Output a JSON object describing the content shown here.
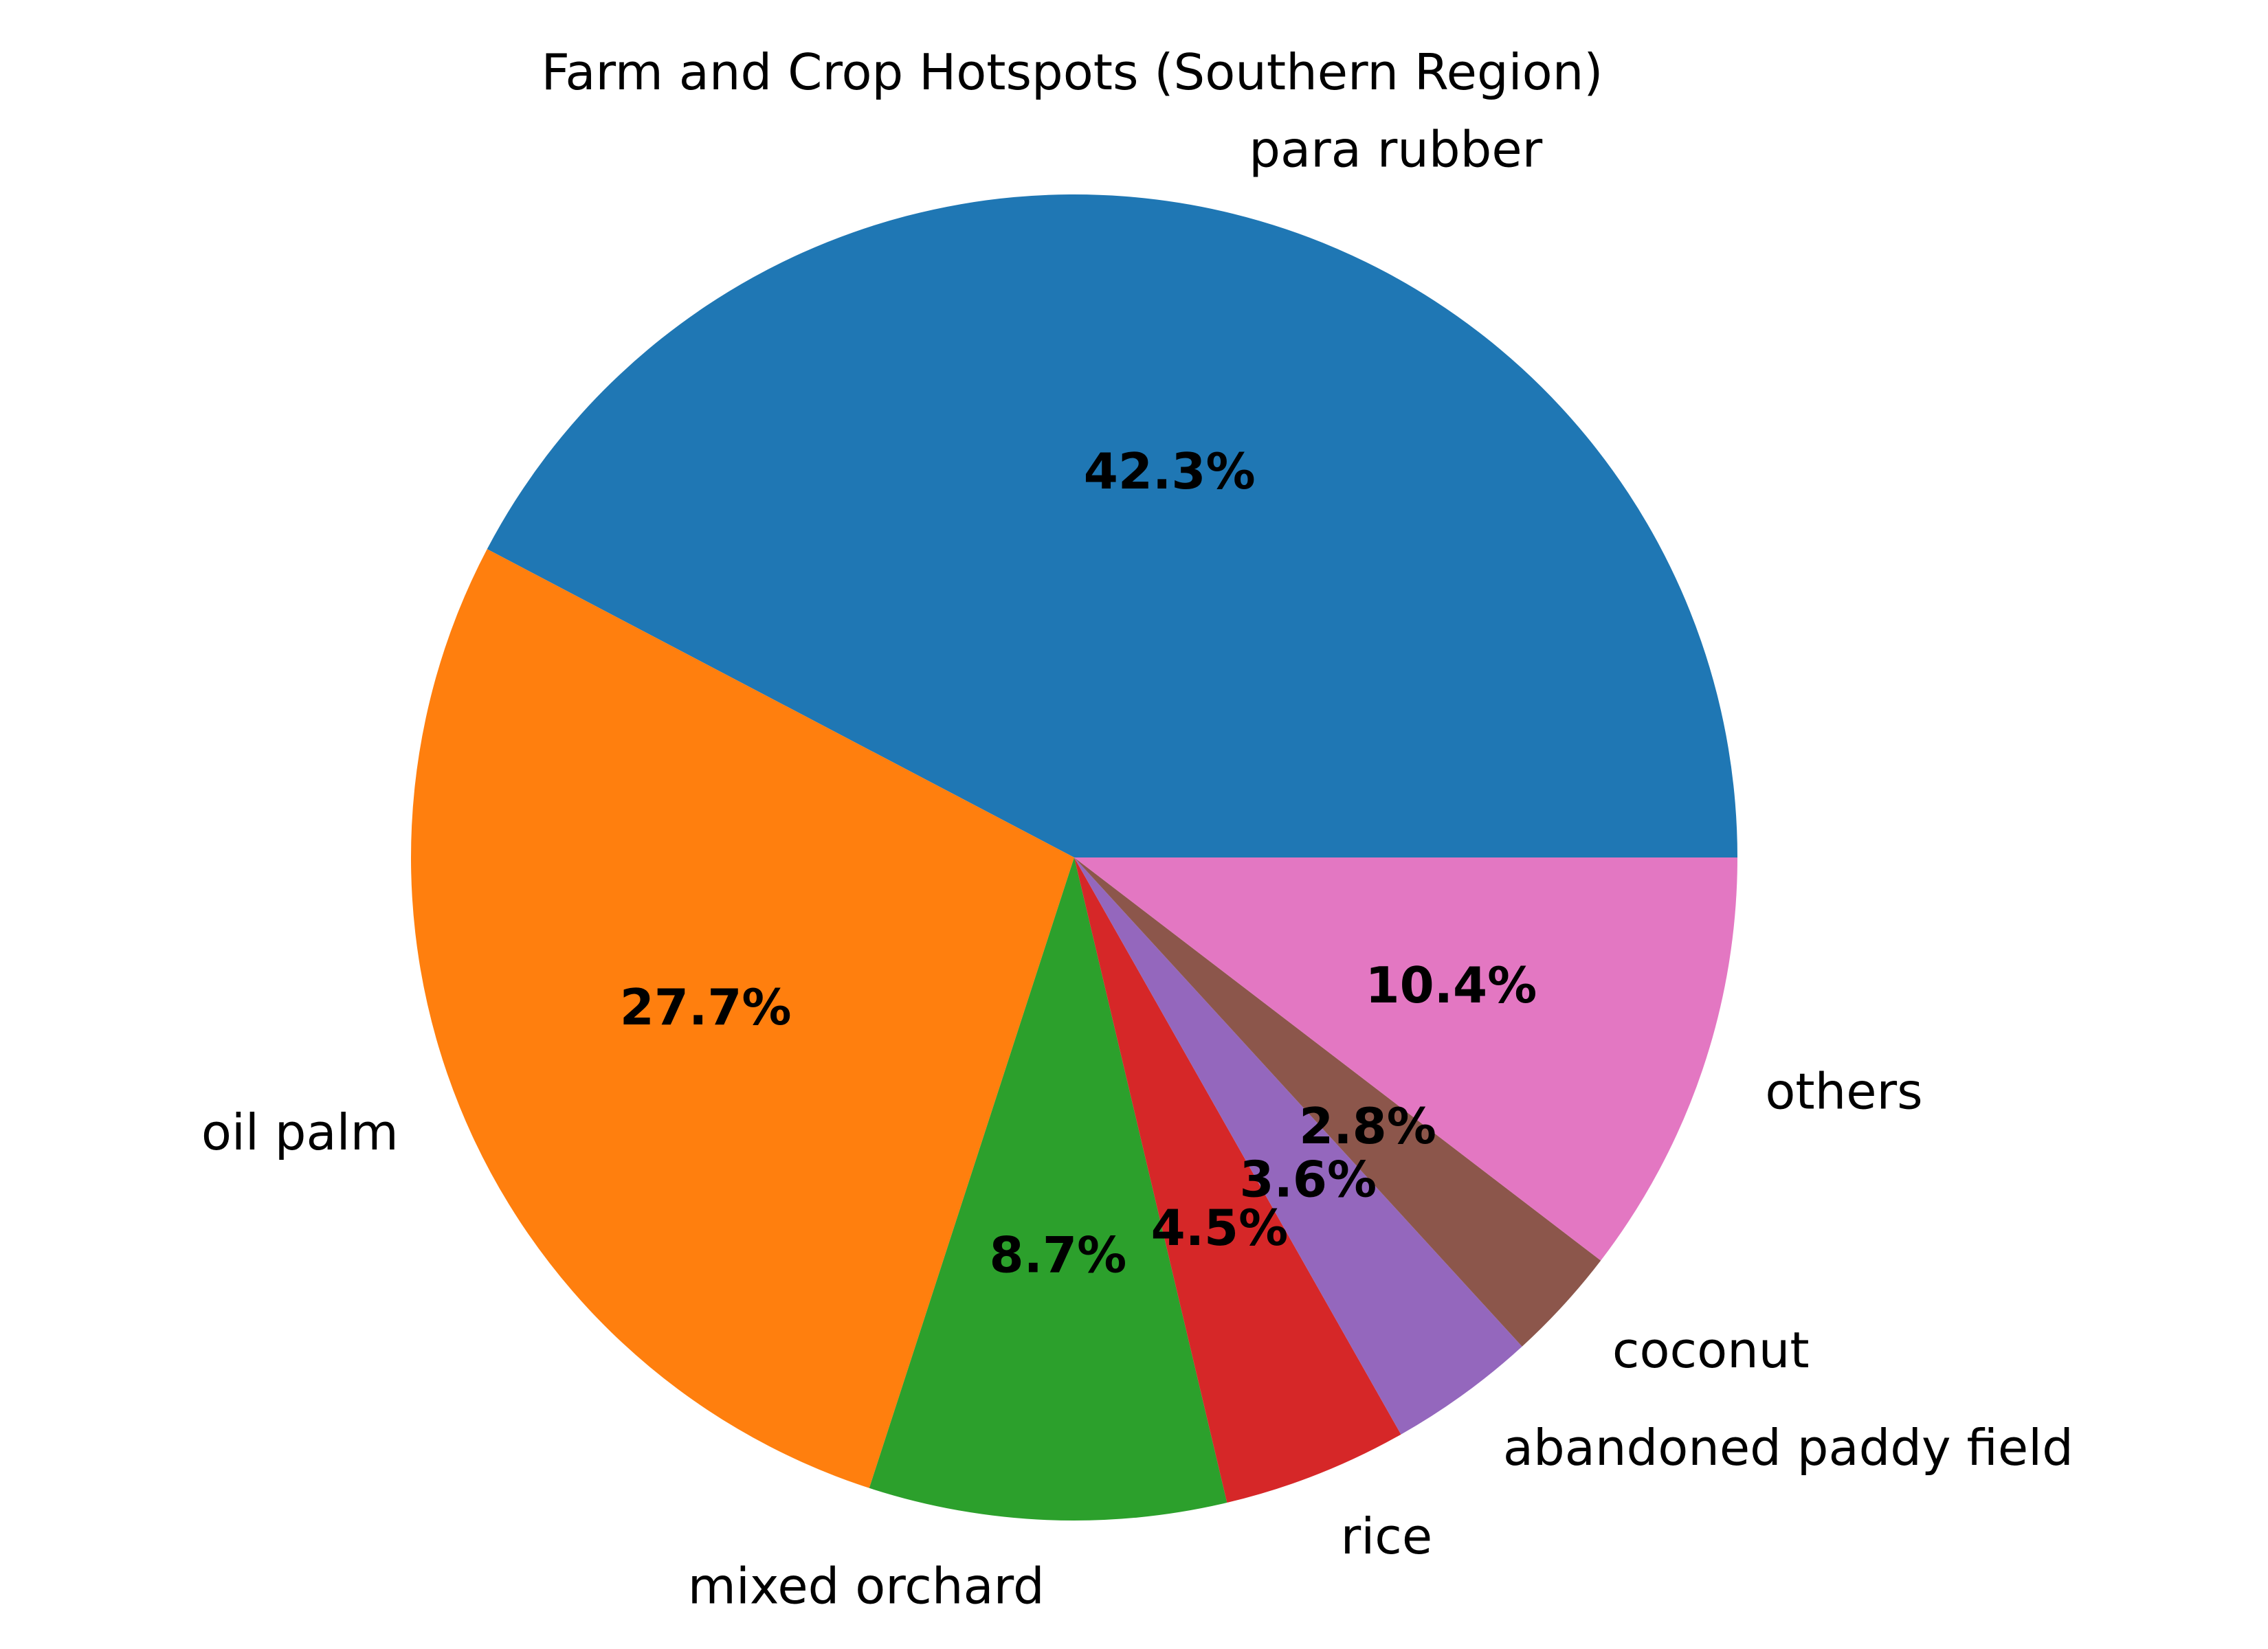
{
  "chart_data": {
    "type": "pie",
    "title": "Farm and Crop Hotspots (Southern Region)",
    "start_angle": 0,
    "direction": "counterclockwise",
    "slices": [
      {
        "label": "para rubber",
        "value": 42.3,
        "pct_label": "42.3%",
        "color": "#1f77b4"
      },
      {
        "label": "oil palm",
        "value": 27.7,
        "pct_label": "27.7%",
        "color": "#ff7f0e"
      },
      {
        "label": "mixed orchard",
        "value": 8.7,
        "pct_label": "8.7%",
        "color": "#2ca02c"
      },
      {
        "label": "rice",
        "value": 4.5,
        "pct_label": "4.5%",
        "color": "#d62728"
      },
      {
        "label": "abandoned paddy field",
        "value": 3.6,
        "pct_label": "3.6%",
        "color": "#9467bd"
      },
      {
        "label": "coconut",
        "value": 2.8,
        "pct_label": "2.8%",
        "color": "#8c564b"
      },
      {
        "label": "others",
        "value": 10.4,
        "pct_label": "10.4%",
        "color": "#e377c2"
      }
    ]
  }
}
